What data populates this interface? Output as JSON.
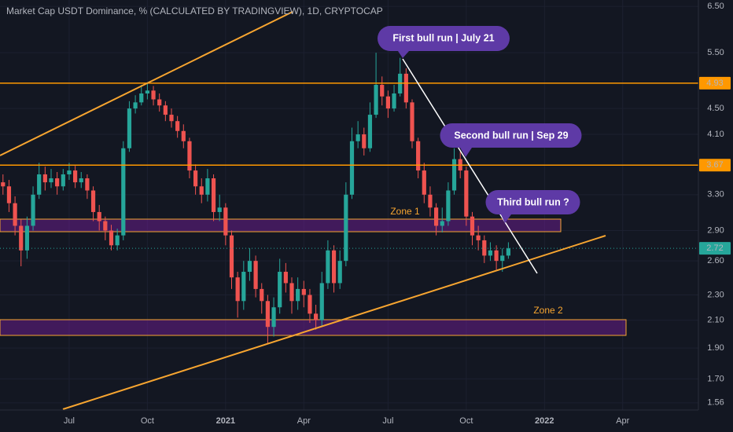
{
  "chart_data": {
    "type": "candlestick",
    "title": "Market Cap USDT Dominance, % (CALCULATED BY TRADINGVIEW), 1D, CRYPTOCAP",
    "log_scale": true,
    "grid": true,
    "up_color": "#26a69a",
    "down_color": "#ef5350",
    "ylim": [
      1.52,
      6.65
    ],
    "yticks": [
      {
        "value": 6.5,
        "label": "6.50"
      },
      {
        "value": 5.5,
        "label": "5.50"
      },
      {
        "value": 4.5,
        "label": "4.50"
      },
      {
        "value": 4.1,
        "label": "4.10"
      },
      {
        "value": 3.3,
        "label": "3.30"
      },
      {
        "value": 2.9,
        "label": "2.90"
      },
      {
        "value": 2.6,
        "label": "2.60"
      },
      {
        "value": 2.3,
        "label": "2.30"
      },
      {
        "value": 2.1,
        "label": "2.10"
      },
      {
        "value": 1.9,
        "label": "1.90"
      },
      {
        "value": 1.7,
        "label": "1.70"
      },
      1.56
    ],
    "price_lines": [
      {
        "value": 4.93,
        "label": "4.93",
        "color": "#ff9800"
      },
      {
        "value": 3.67,
        "label": "3.67",
        "color": "#ff9800"
      }
    ],
    "last_price": {
      "value": 2.72,
      "label": "2.72",
      "color": "#26a69a"
    },
    "categories": [
      null,
      null,
      null,
      null,
      null,
      null,
      null,
      null,
      null,
      null,
      null,
      "Jul",
      null,
      null,
      null,
      null,
      null,
      null,
      null,
      null,
      null,
      null,
      null,
      null,
      "Oct",
      null,
      null,
      null,
      null,
      null,
      null,
      null,
      null,
      null,
      null,
      null,
      null,
      "2021",
      null,
      null,
      null,
      null,
      null,
      null,
      null,
      null,
      null,
      null,
      null,
      null,
      "Apr",
      null,
      null,
      null,
      null,
      null,
      null,
      null,
      null,
      null,
      null,
      null,
      null,
      null,
      "Jul",
      null,
      null,
      null,
      null,
      null,
      null,
      null,
      null,
      null,
      null,
      null,
      null,
      "Oct",
      null,
      null,
      null,
      null,
      null,
      null,
      null,
      null,
      null,
      null,
      null,
      null,
      "2022",
      null,
      null,
      null,
      null,
      null,
      null,
      null,
      null,
      null,
      null,
      null,
      null,
      "Apr",
      null,
      null,
      null,
      null,
      null,
      null,
      null,
      null,
      null,
      null,
      null,
      null
    ],
    "series": {
      "open": [
        3.45,
        3.4,
        3.2,
        2.95,
        2.7,
        2.95,
        3.3,
        3.55,
        3.45,
        3.5,
        3.4,
        3.55,
        3.6,
        3.45,
        3.5,
        3.35,
        3.1,
        3.0,
        2.9,
        2.75,
        2.85,
        3.9,
        4.5,
        4.6,
        4.75,
        4.8,
        4.65,
        4.55,
        4.4,
        4.3,
        4.15,
        4.0,
        3.6,
        3.4,
        3.3,
        3.5,
        3.1,
        3.15,
        2.85,
        2.45,
        2.25,
        2.5,
        2.6,
        2.35,
        2.25,
        2.05,
        2.2,
        2.5,
        2.4,
        2.25,
        2.35,
        2.3,
        2.15,
        2.1,
        2.4,
        2.7,
        2.4,
        2.6,
        3.3,
        4.0,
        4.1,
        3.9,
        4.4,
        4.9,
        4.7,
        4.5,
        4.75,
        5.1,
        4.6,
        4.0,
        3.6,
        3.3,
        3.15,
        2.95,
        3.0,
        3.35,
        3.75,
        3.6,
        3.05,
        2.85,
        2.8,
        2.65,
        2.7,
        2.6,
        2.65,
        null,
        null,
        null,
        null,
        null,
        null,
        null,
        null,
        null,
        null,
        null,
        null,
        null,
        null,
        null,
        null,
        null,
        null,
        null,
        null,
        null,
        null,
        null,
        null,
        null,
        null,
        null,
        null,
        null,
        null,
        null
      ],
      "high": [
        3.55,
        3.48,
        3.28,
        3.02,
        3.05,
        3.4,
        3.7,
        3.65,
        3.62,
        3.58,
        3.62,
        3.7,
        3.66,
        3.58,
        3.55,
        3.4,
        3.18,
        3.05,
        2.96,
        2.92,
        4.0,
        4.62,
        4.72,
        4.9,
        4.93,
        4.88,
        4.75,
        4.62,
        4.5,
        4.38,
        4.25,
        4.05,
        3.68,
        3.5,
        3.62,
        3.55,
        3.3,
        3.2,
        2.9,
        2.5,
        2.6,
        2.72,
        2.65,
        2.4,
        2.3,
        2.28,
        2.62,
        2.58,
        2.45,
        2.45,
        2.42,
        2.35,
        2.22,
        2.5,
        2.8,
        2.75,
        2.7,
        3.45,
        4.2,
        4.3,
        4.2,
        4.6,
        5.5,
        5.05,
        4.8,
        4.9,
        5.4,
        5.2,
        4.65,
        4.05,
        3.7,
        3.4,
        3.2,
        3.15,
        3.45,
        3.9,
        3.85,
        3.65,
        3.1,
        2.95,
        2.85,
        2.78,
        2.75,
        2.72,
        2.78,
        null,
        null,
        null,
        null,
        null,
        null,
        null,
        null,
        null,
        null,
        null,
        null,
        null,
        null,
        null,
        null,
        null,
        null,
        null,
        null,
        null,
        null,
        null,
        null,
        null,
        null,
        null,
        null,
        null,
        null,
        null
      ],
      "low": [
        3.3,
        3.1,
        2.85,
        2.55,
        2.62,
        2.9,
        3.25,
        3.35,
        3.38,
        3.3,
        3.35,
        3.48,
        3.38,
        3.38,
        3.25,
        3.0,
        2.9,
        2.8,
        2.7,
        2.7,
        2.8,
        3.85,
        4.42,
        4.55,
        4.65,
        4.55,
        4.45,
        4.3,
        4.2,
        4.05,
        3.9,
        3.5,
        3.3,
        3.2,
        3.22,
        3.0,
        3.0,
        2.75,
        2.35,
        2.12,
        2.18,
        2.42,
        2.28,
        2.15,
        1.93,
        1.98,
        2.15,
        2.32,
        2.15,
        2.18,
        2.2,
        2.08,
        2.03,
        2.05,
        2.35,
        2.32,
        2.35,
        2.55,
        3.25,
        3.9,
        3.8,
        3.85,
        4.35,
        4.55,
        4.35,
        4.45,
        4.7,
        4.5,
        3.9,
        3.5,
        3.2,
        3.05,
        2.85,
        2.88,
        2.95,
        3.3,
        3.5,
        2.95,
        2.75,
        2.7,
        2.58,
        2.6,
        2.52,
        2.5,
        2.62,
        null,
        null,
        null,
        null,
        null,
        null,
        null,
        null,
        null,
        null,
        null,
        null,
        null,
        null,
        null,
        null,
        null,
        null,
        null,
        null,
        null,
        null,
        null,
        null,
        null,
        null,
        null,
        null,
        null,
        null,
        null
      ],
      "close": [
        3.4,
        3.2,
        2.95,
        2.7,
        2.95,
        3.3,
        3.55,
        3.45,
        3.5,
        3.4,
        3.55,
        3.6,
        3.45,
        3.5,
        3.35,
        3.1,
        3.0,
        2.9,
        2.75,
        2.85,
        3.9,
        4.5,
        4.6,
        4.75,
        4.8,
        4.65,
        4.55,
        4.4,
        4.3,
        4.15,
        4.0,
        3.6,
        3.4,
        3.3,
        3.5,
        3.1,
        3.15,
        2.85,
        2.45,
        2.25,
        2.5,
        2.6,
        2.35,
        2.25,
        2.05,
        2.2,
        2.5,
        2.4,
        2.25,
        2.35,
        2.3,
        2.15,
        2.1,
        2.4,
        2.7,
        2.4,
        2.6,
        3.3,
        4.0,
        4.1,
        3.9,
        4.4,
        4.9,
        4.7,
        4.5,
        4.75,
        5.1,
        4.6,
        4.0,
        3.6,
        3.3,
        3.15,
        2.95,
        3.0,
        3.35,
        3.75,
        3.6,
        3.05,
        2.85,
        2.8,
        2.65,
        2.7,
        2.6,
        2.65,
        2.72,
        null,
        null,
        null,
        null,
        null,
        null,
        null,
        null,
        null,
        null,
        null,
        null,
        null,
        null,
        null,
        null,
        null,
        null,
        null,
        null,
        null,
        null,
        null,
        null,
        null,
        null,
        null,
        null,
        null,
        null,
        null
      ]
    },
    "annotations": [
      "First bull run | July 21",
      "Second bull run | Sep 29",
      "Third bull run ?",
      "Zone 1",
      "Zone 2"
    ]
  }
}
